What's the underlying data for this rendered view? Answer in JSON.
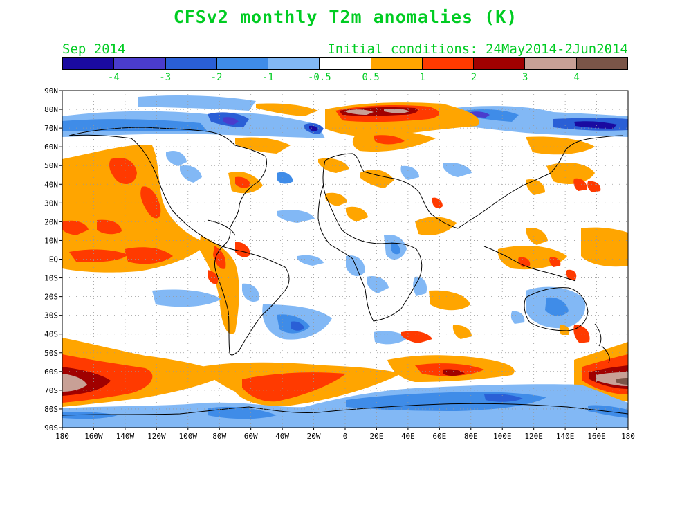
{
  "title": "CFSv2 monthly T2m anomalies (K)",
  "forecast_month": "Sep 2014",
  "initial_conditions": "Initial conditions: 24May2014-2Jun2014",
  "colorbar": {
    "colors": [
      "#1a0aa0",
      "#4a3ccd",
      "#2a5fd6",
      "#3f8ce8",
      "#82b8f5",
      "#ffffff",
      "#ffa500",
      "#ff3a00",
      "#a00000",
      "#c8a096",
      "#7a5548"
    ],
    "labels": [
      "-4",
      "-3",
      "-2",
      "-1",
      "-0.5",
      "0.5",
      "1",
      "2",
      "3",
      "4"
    ]
  },
  "axes": {
    "lat_labels": [
      "90N",
      "80N",
      "70N",
      "60N",
      "50N",
      "40N",
      "30N",
      "20N",
      "10N",
      "EQ",
      "10S",
      "20S",
      "30S",
      "40S",
      "50S",
      "60S",
      "70S",
      "80S",
      "90S"
    ],
    "lon_labels": [
      "180",
      "160W",
      "140W",
      "120W",
      "100W",
      "80W",
      "60W",
      "40W",
      "20W",
      "0",
      "20E",
      "40E",
      "60E",
      "80E",
      "100E",
      "120E",
      "140E",
      "160E",
      "180"
    ]
  }
}
